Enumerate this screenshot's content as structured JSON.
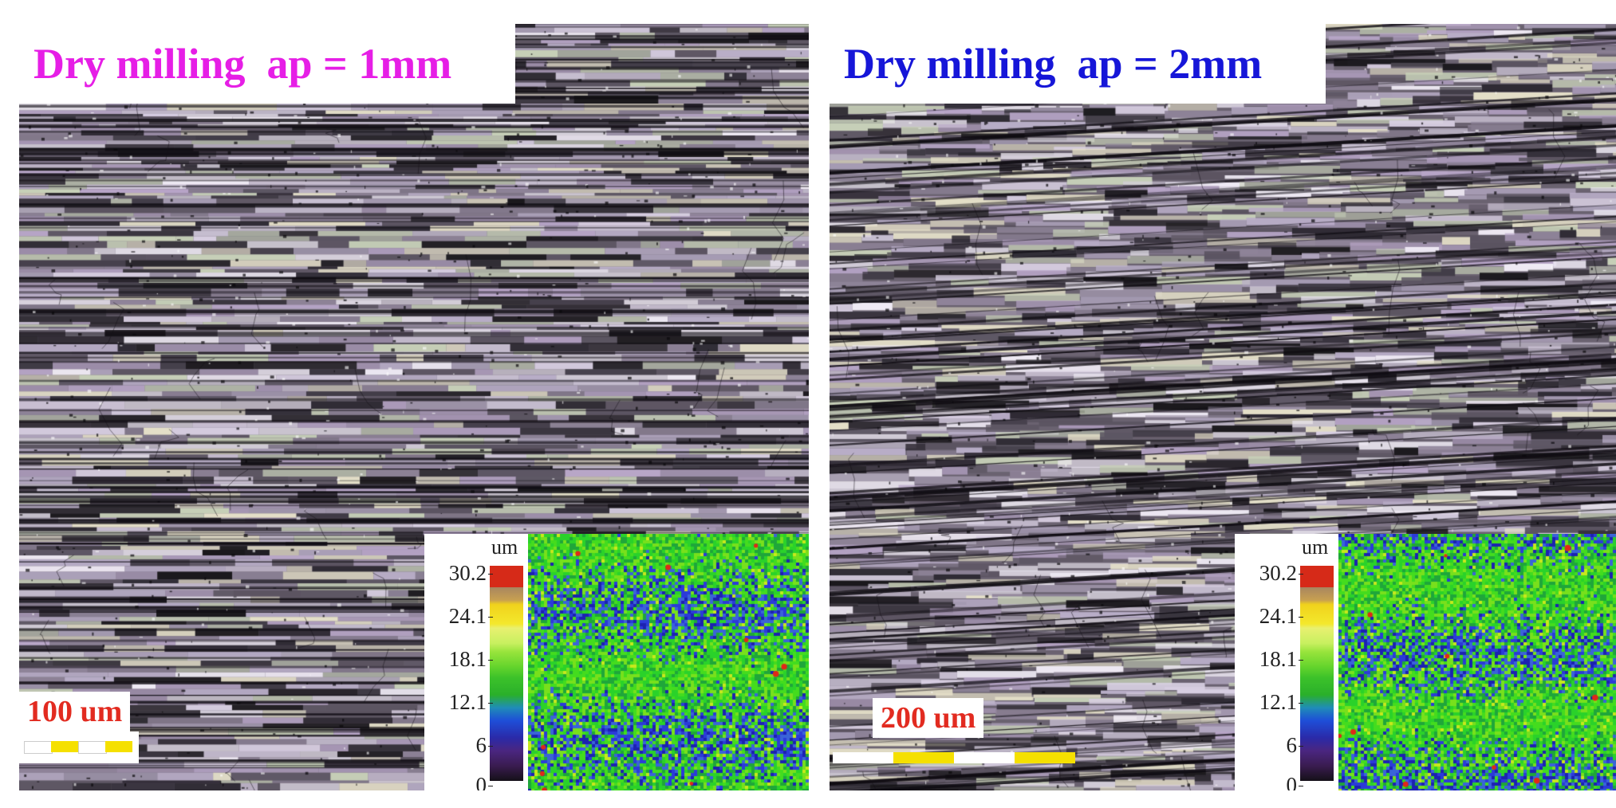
{
  "panels": [
    {
      "title": "Dry milling  ap = 1mm",
      "title_color": "#e61ee6",
      "scale_label": "100 um",
      "colorbar_unit": "um",
      "colorbar_ticks": [
        "30.2",
        "24.1",
        "18.1",
        "12.1",
        "6",
        "0"
      ]
    },
    {
      "title": "Dry milling  ap = 2mm",
      "title_color": "#1616d8",
      "scale_label": "200 um",
      "colorbar_unit": "um",
      "colorbar_ticks": [
        "30.2",
        "24.1",
        "18.1",
        "12.1",
        "6",
        "0"
      ]
    }
  ],
  "colors": {
    "scale_label": "#e22b20",
    "scale_bar_yellow": "#f5e000",
    "scale_bar_white": "#ffffff"
  }
}
